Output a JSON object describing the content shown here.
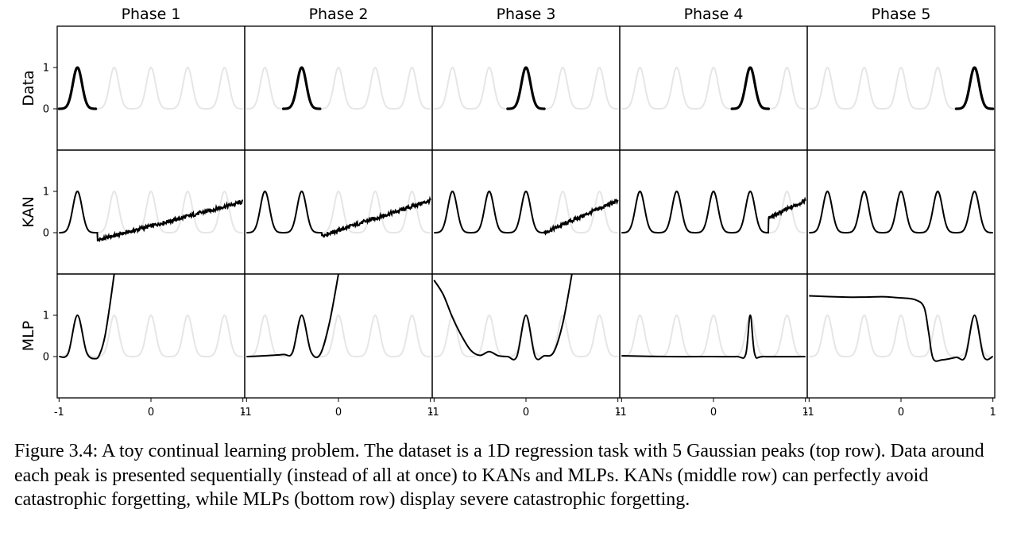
{
  "chart_data": {
    "type": "line",
    "grid": false,
    "phases": [
      "Phase 1",
      "Phase 2",
      "Phase 3",
      "Phase 4",
      "Phase 5"
    ],
    "rows": [
      "Data",
      "KAN",
      "MLP"
    ],
    "x_tick_labels": [
      "-1",
      "0",
      "1"
    ],
    "x_ticks": [
      -1,
      0,
      1
    ],
    "y_tick_labels": [
      "0",
      "1"
    ],
    "y_ticks": [
      0,
      1
    ],
    "xlim": [
      -1.02,
      1.02
    ],
    "ylim": [
      -1,
      2
    ],
    "gaussian_peaks": {
      "centers": [
        -0.8,
        -0.4,
        0.0,
        0.4,
        0.8
      ],
      "height": 1.0,
      "width_sigma": 0.05
    },
    "reference_curve_color": "#e6e6e6",
    "model_curve_color": "#000000",
    "kan_tail_after_latest_peak": [
      {
        "phase": 1,
        "start": [
          -0.58,
          -0.18
        ],
        "end": [
          1.0,
          0.75
        ]
      },
      {
        "phase": 2,
        "start": [
          -0.18,
          -0.07
        ],
        "end": [
          1.0,
          0.78
        ]
      },
      {
        "phase": 3,
        "start": [
          0.2,
          0.0
        ],
        "end": [
          1.0,
          0.78
        ]
      },
      {
        "phase": 4,
        "start": [
          0.6,
          0.35
        ],
        "end": [
          1.0,
          0.78
        ]
      }
    ],
    "mlp_curves": [
      {
        "phase": 1,
        "x": [
          -1.0,
          -0.9,
          -0.8,
          -0.7,
          -0.6,
          -0.55,
          -0.5,
          -0.45,
          -0.4
        ],
        "y": [
          0,
          0.08,
          1.0,
          0.1,
          -0.05,
          0.1,
          0.5,
          1.2,
          2.0
        ]
      },
      {
        "phase": 2,
        "x": [
          -1.0,
          -0.8,
          -0.6,
          -0.5,
          -0.4,
          -0.3,
          -0.2,
          -0.1,
          0.0
        ],
        "y": [
          0,
          0.02,
          0.05,
          0.1,
          1.0,
          0.12,
          0.05,
          0.8,
          2.0
        ]
      },
      {
        "phase": 3,
        "x": [
          -1.0,
          -0.9,
          -0.8,
          -0.7,
          -0.6,
          -0.5,
          -0.4,
          -0.3,
          -0.2,
          -0.1,
          0.0,
          0.1,
          0.2,
          0.3,
          0.4,
          0.5
        ],
        "y": [
          1.85,
          1.5,
          0.95,
          0.5,
          0.15,
          0.03,
          0.12,
          0.02,
          0.0,
          0.0,
          1.0,
          0.0,
          0.02,
          0.1,
          0.8,
          2.0
        ]
      },
      {
        "phase": 4,
        "x": [
          -1.0,
          -0.5,
          0.0,
          0.25,
          0.35,
          0.4,
          0.45,
          0.55,
          1.0
        ],
        "y": [
          0.02,
          0.0,
          0.0,
          0.0,
          0.05,
          1.0,
          0.05,
          0.0,
          0.0
        ]
      },
      {
        "phase": 5,
        "x": [
          -1.0,
          -0.6,
          -0.4,
          -0.2,
          0.0,
          0.15,
          0.25,
          0.3,
          0.35,
          0.45,
          0.6,
          0.7,
          0.8,
          0.9,
          1.0
        ],
        "y": [
          1.47,
          1.44,
          1.44,
          1.45,
          1.42,
          1.38,
          1.2,
          0.6,
          -0.05,
          -0.08,
          -0.02,
          0.0,
          1.0,
          0.0,
          0.0
        ]
      }
    ]
  },
  "caption": "Figure 3.4: A toy continual learning problem. The dataset is a 1D regression task with 5 Gaussian peaks (top row). Data around each peak is presented sequentially (instead of all at once) to KANs and MLPs. KANs (middle row) can perfectly avoid catastrophic forgetting, while MLPs (bottom row) display severe catastrophic forgetting."
}
